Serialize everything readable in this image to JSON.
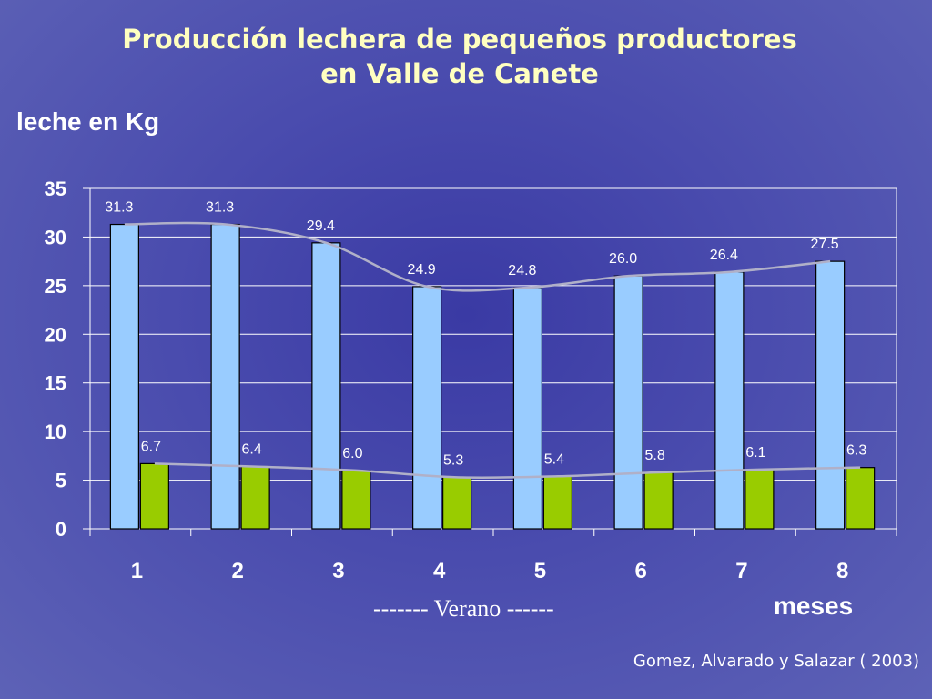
{
  "chart_data": {
    "type": "bar",
    "title_lines": [
      "Producción lechera de pequeños productores",
      "en Valle de Canete"
    ],
    "ylabel": "leche en Kg",
    "xlabel": "meses",
    "categories": [
      "1",
      "2",
      "3",
      "4",
      "5",
      "6",
      "7",
      "8"
    ],
    "series": [
      {
        "values": [
          31.3,
          31.3,
          29.4,
          24.9,
          24.8,
          26.0,
          26.4,
          27.5
        ],
        "color": "#99ccff",
        "labels": [
          "31.3",
          "31.3",
          "29.4",
          "24.9",
          "24.8",
          "26.0",
          "26.4",
          "27.5"
        ]
      },
      {
        "values": [
          6.7,
          6.4,
          6.0,
          5.3,
          5.4,
          5.8,
          6.1,
          6.3
        ],
        "color": "#99cc00",
        "labels": [
          "6.7",
          "6.4",
          "6.0",
          "5.3",
          "5.4",
          "5.8",
          "6.1",
          "6.3"
        ]
      }
    ],
    "ylim": [
      0,
      35
    ],
    "yticks": [
      "0",
      "5",
      "10",
      "15",
      "20",
      "25",
      "30",
      "35"
    ],
    "grid": true,
    "trendline_color": "#b0b0c8",
    "annotation": "------- Verano ------",
    "source": "Gomez, Alvarado y Salazar ( 2003)"
  }
}
